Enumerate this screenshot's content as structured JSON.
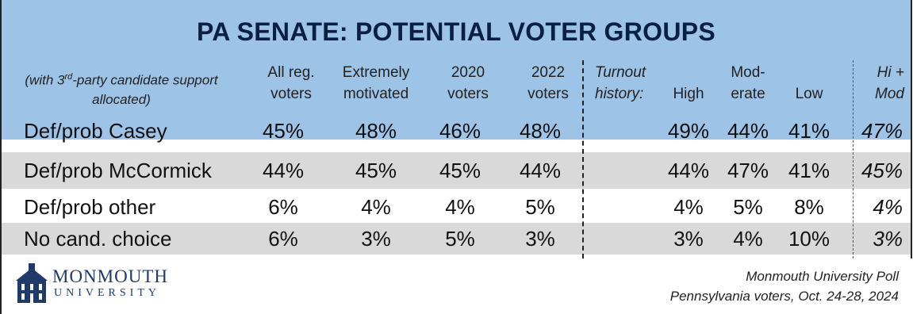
{
  "title": "PA SENATE: POTENTIAL VOTER GROUPS",
  "note": {
    "prefix": "(with 3",
    "superscript": "rd",
    "suffix": "-party candidate support allocated)"
  },
  "headers": {
    "all_reg": [
      "All reg.",
      "voters"
    ],
    "extremely": [
      "Extremely",
      "motivated"
    ],
    "v2020": [
      "2020",
      "voters"
    ],
    "v2022": [
      "2022",
      "voters"
    ],
    "turnout": [
      "Turnout",
      "history:"
    ],
    "high": "High",
    "moderate": [
      "Mod-",
      "erate"
    ],
    "low": "Low",
    "himod": [
      "Hi +",
      "Mod"
    ]
  },
  "chart_data": {
    "type": "table",
    "title": "PA SENATE: POTENTIAL VOTER GROUPS",
    "columns": [
      "All reg. voters",
      "Extremely motivated",
      "2020 voters",
      "2022 voters",
      "High",
      "Mod-erate",
      "Low",
      "Hi + Mod"
    ],
    "rows": [
      {
        "label": "Def/prob Casey",
        "values": [
          "45%",
          "48%",
          "46%",
          "48%",
          "49%",
          "44%",
          "41%",
          "47%"
        ],
        "shade": false
      },
      {
        "label": "Def/prob McCormick",
        "values": [
          "44%",
          "45%",
          "45%",
          "44%",
          "44%",
          "47%",
          "41%",
          "45%"
        ],
        "shade": true
      },
      {
        "label": "Def/prob other",
        "values": [
          "6%",
          "4%",
          "4%",
          "5%",
          "4%",
          "5%",
          "8%",
          "4%"
        ],
        "shade": false
      },
      {
        "label": "No cand. choice",
        "values": [
          "6%",
          "3%",
          "5%",
          "3%",
          "3%",
          "4%",
          "10%",
          "3%"
        ],
        "shade": true
      }
    ]
  },
  "logo": {
    "line1": "MONMOUTH",
    "line2": "UNIVERSITY",
    "color": "#1f3a6b"
  },
  "source": {
    "line1": "Monmouth University Poll",
    "line2": "Pennsylvania voters, Oct. 24-28, 2024"
  },
  "colors": {
    "header_bg": "#9dc3e6",
    "row_shade": "#d9d9d9",
    "title": "#0a1f44"
  }
}
